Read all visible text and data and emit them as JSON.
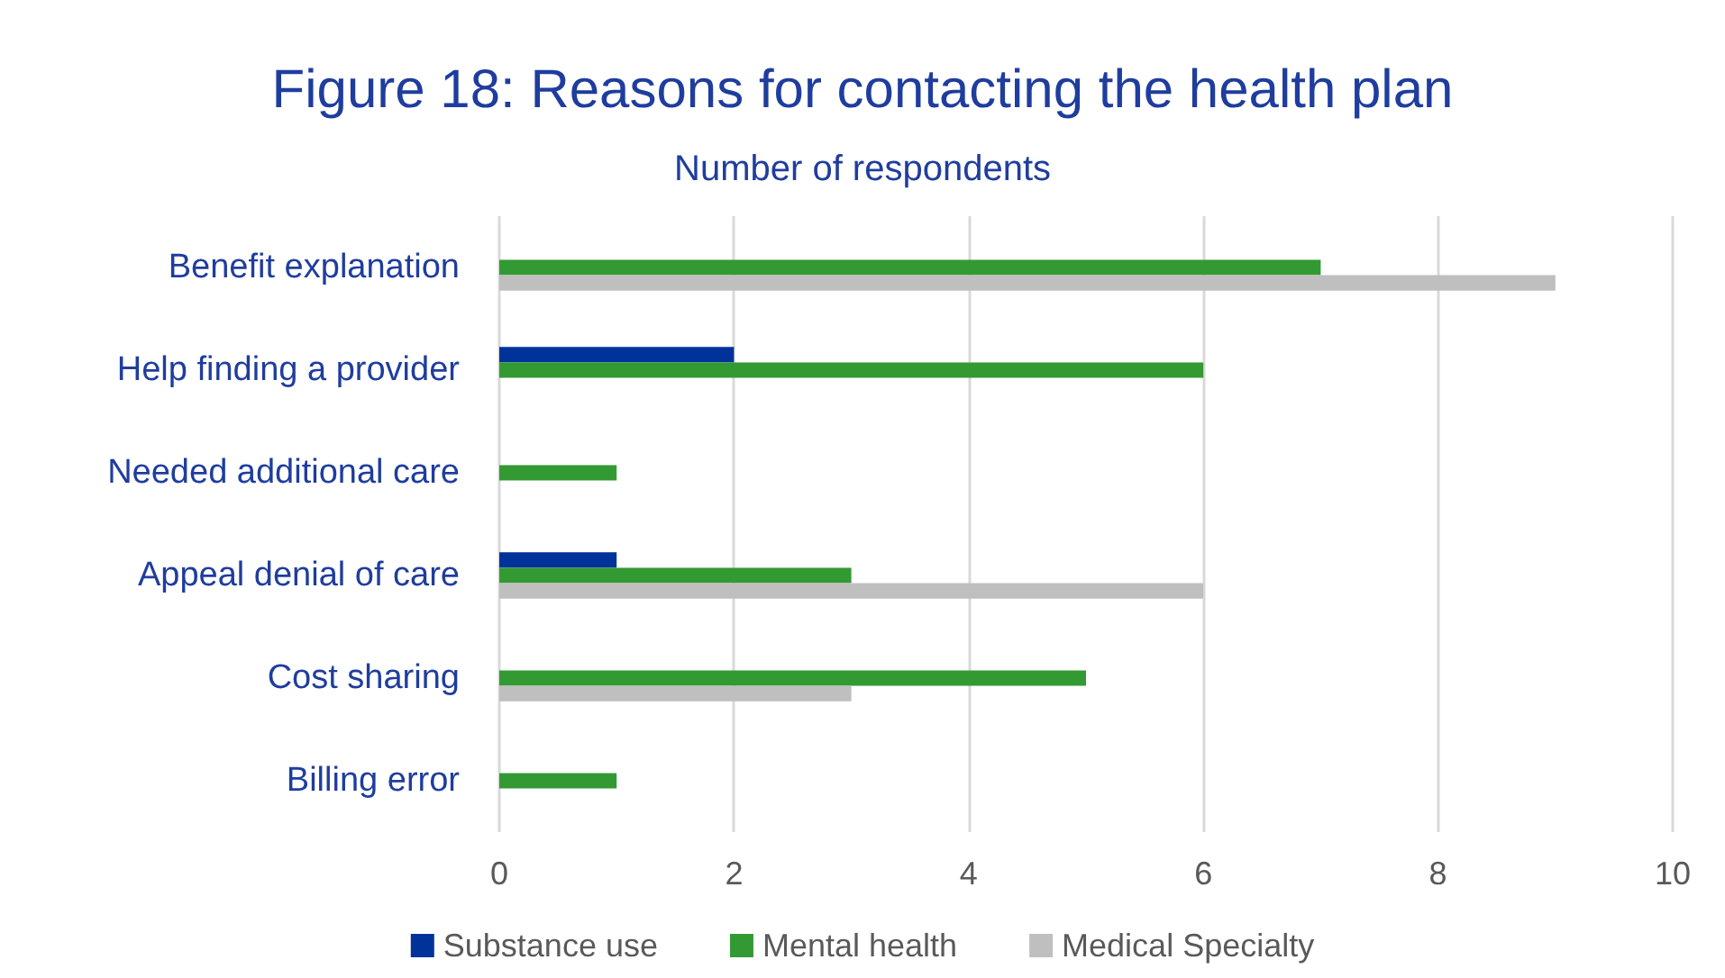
{
  "chart_data": {
    "type": "bar",
    "orientation": "horizontal",
    "title": "Figure 18: Reasons for contacting the health plan",
    "subtitle": "Number of respondents",
    "categories": [
      "Benefit explanation",
      "Help finding a provider",
      "Needed additional care",
      "Appeal denial of care",
      "Cost sharing",
      "Billing error"
    ],
    "series": [
      {
        "name": "Substance use",
        "color": "#003399",
        "values": [
          0,
          2,
          0,
          1,
          0,
          0
        ]
      },
      {
        "name": "Mental health",
        "color": "#339933",
        "values": [
          7,
          6,
          1,
          3,
          5,
          1
        ]
      },
      {
        "name": "Medical Specialty",
        "color": "#bfbfbf",
        "values": [
          9,
          0,
          0,
          6,
          3,
          0
        ]
      }
    ],
    "xlim": [
      0,
      10
    ],
    "xticks": [
      0,
      2,
      4,
      6,
      8,
      10
    ],
    "grid": "x",
    "legend": "bottom"
  }
}
